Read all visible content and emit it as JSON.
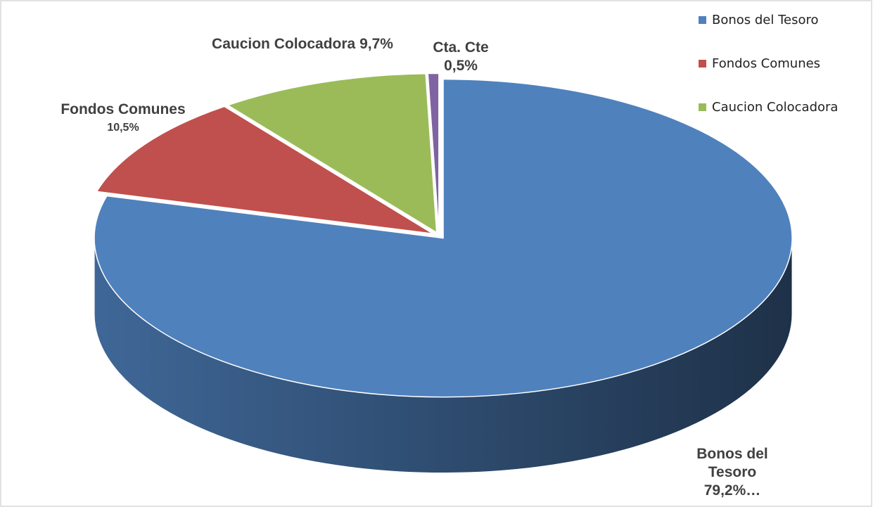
{
  "chart_data": {
    "type": "pie",
    "categories": [
      "Bonos del Tesoro",
      "Fondos Comunes",
      "Caucion Colocadora",
      "Cta. Cte"
    ],
    "values": [
      79.2,
      10.5,
      9.7,
      0.5
    ],
    "value_labels": [
      "79,2%…",
      "10,5%",
      "9,7%",
      "0,5%"
    ],
    "colors": [
      "#4f81bd",
      "#c0504d",
      "#9bbb59",
      "#8064a2"
    ],
    "legend": "top-right"
  }
}
